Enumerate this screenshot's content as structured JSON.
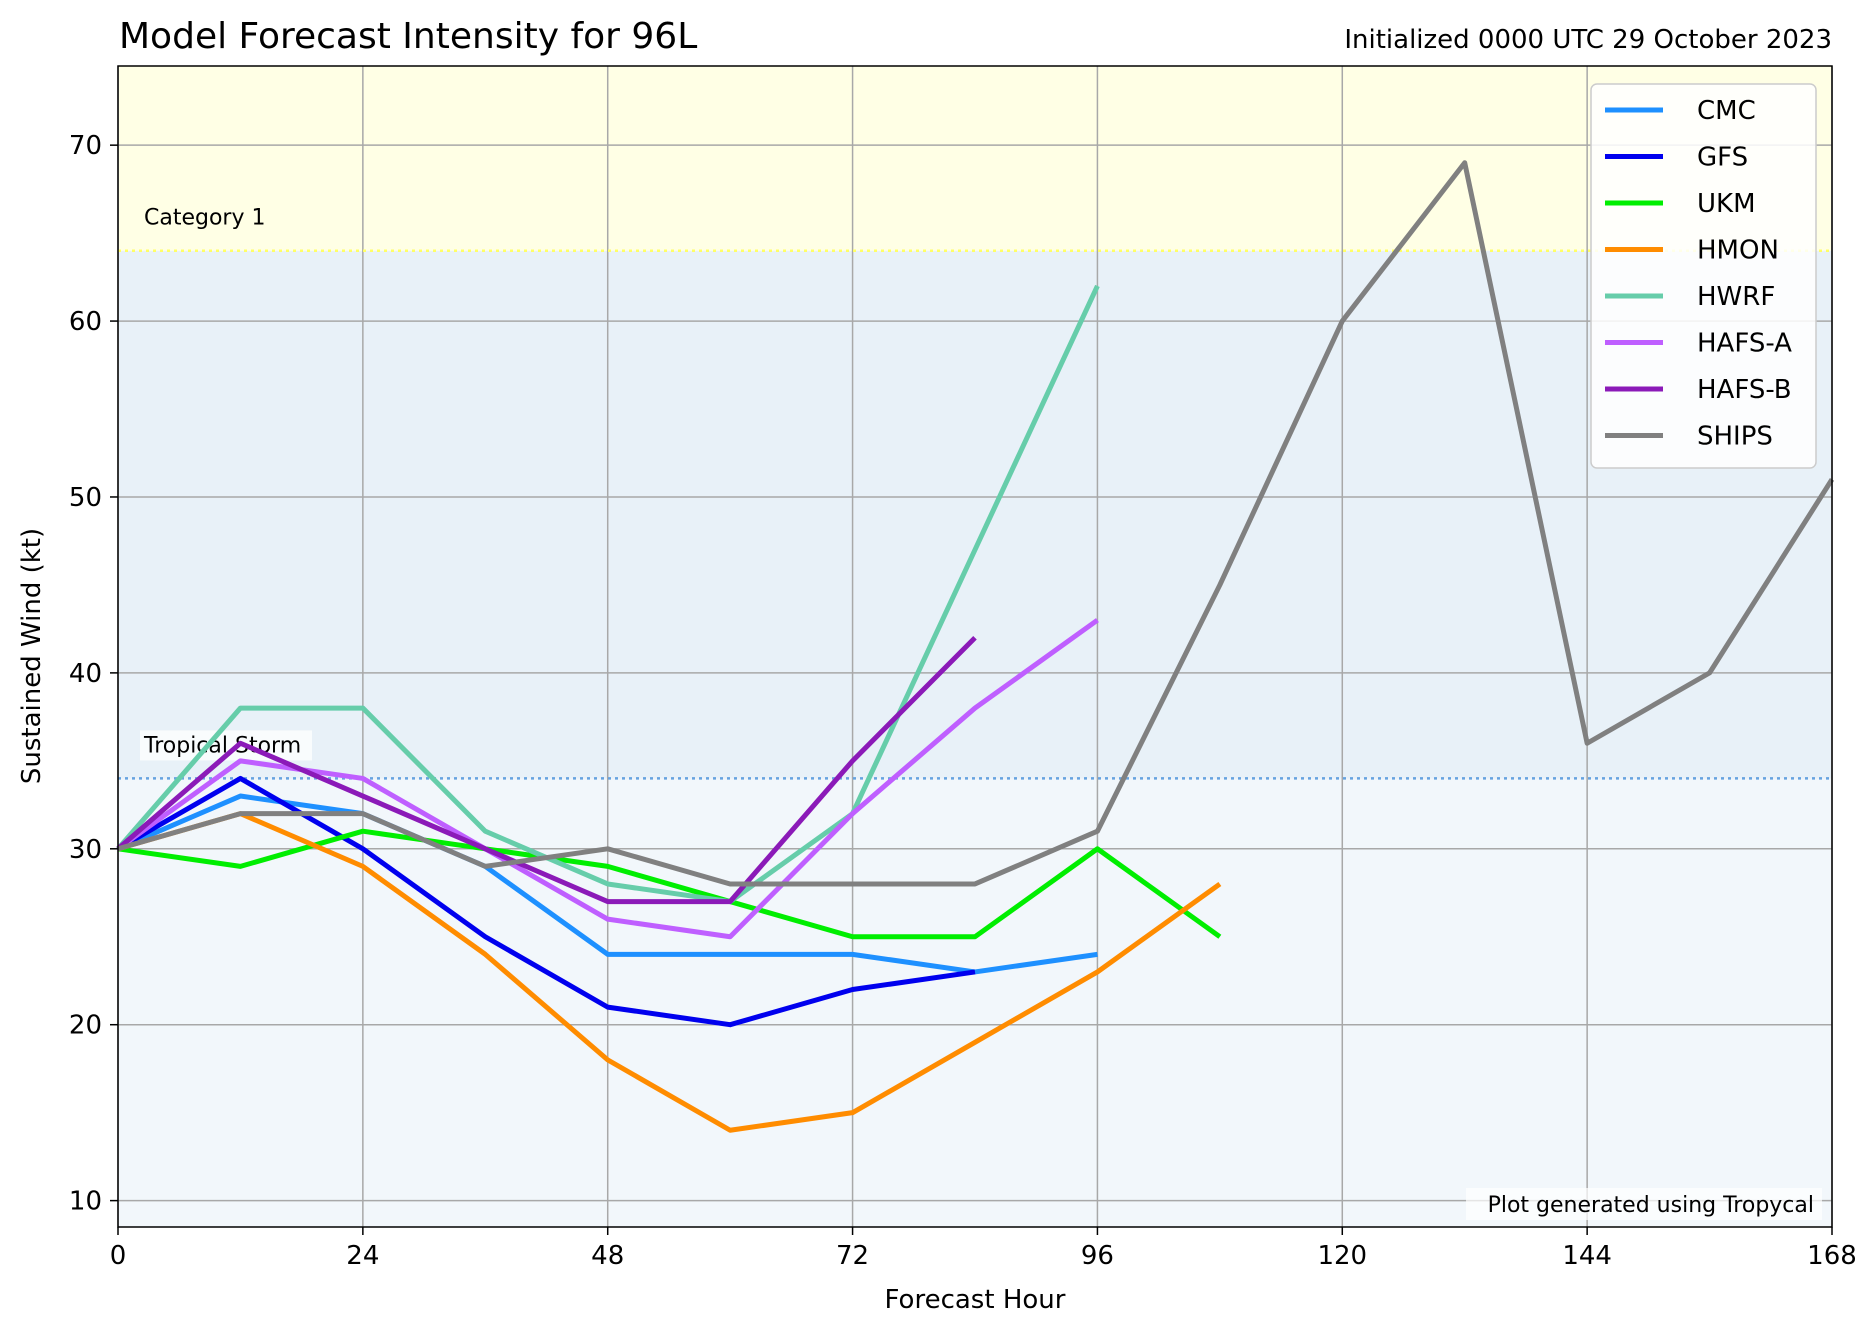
{
  "chart_data": {
    "type": "line",
    "title": "Model Forecast Intensity for 96L",
    "subtitle": "Initialized 0000 UTC 29 October 2023",
    "xlabel": "Forecast Hour",
    "ylabel": "Sustained Wind (kt)",
    "xlim": [
      0,
      168
    ],
    "ylim": [
      8.5,
      74.5
    ],
    "xticks": [
      0,
      24,
      48,
      72,
      96,
      120,
      144,
      168
    ],
    "yticks": [
      10,
      20,
      30,
      40,
      50,
      60,
      70
    ],
    "grid": true,
    "legend_position": "top-right",
    "credit": "Plot generated using Tropycal",
    "thresholds": [
      {
        "label": "Tropical Storm",
        "value": 34,
        "color": "#66a3e0"
      },
      {
        "label": "Category 1",
        "value": 64,
        "color": "#ffff66"
      }
    ],
    "bands": [
      {
        "from": 8.5,
        "to": 34,
        "color": "#f2f7fb"
      },
      {
        "from": 34,
        "to": 64,
        "color": "#e8f1f8"
      },
      {
        "from": 64,
        "to": 74.5,
        "color": "#ffffe5"
      }
    ],
    "threshold_label_colors": {
      "Tropical Storm": "#5b9bd5",
      "Category 1": "#f5a623"
    },
    "series": [
      {
        "name": "CMC",
        "color": "#1e90ff",
        "x": [
          0,
          12,
          24,
          36,
          48,
          60,
          72,
          84,
          96
        ],
        "y": [
          30,
          33,
          32,
          29,
          24,
          24,
          24,
          23,
          24
        ]
      },
      {
        "name": "GFS",
        "color": "#0000ee",
        "x": [
          0,
          12,
          24,
          36,
          48,
          60,
          72,
          84
        ],
        "y": [
          30,
          34,
          30,
          25,
          21,
          20,
          22,
          23
        ]
      },
      {
        "name": "UKM",
        "color": "#00ee00",
        "x": [
          0,
          12,
          24,
          36,
          48,
          60,
          72,
          84,
          96,
          108
        ],
        "y": [
          30,
          29,
          31,
          30,
          29,
          27,
          25,
          25,
          30,
          25
        ]
      },
      {
        "name": "HMON",
        "color": "#ff8c00",
        "x": [
          0,
          12,
          24,
          36,
          48,
          60,
          72,
          84,
          96,
          108
        ],
        "y": [
          30,
          32,
          29,
          24,
          18,
          14,
          15,
          19,
          23,
          28
        ]
      },
      {
        "name": "HWRF",
        "color": "#66cdaa",
        "x": [
          0,
          12,
          24,
          36,
          48,
          60,
          72,
          84,
          96
        ],
        "y": [
          30,
          38,
          38,
          31,
          28,
          27,
          32,
          47,
          62
        ]
      },
      {
        "name": "HAFS-A",
        "color": "#bf5fff",
        "x": [
          0,
          12,
          24,
          36,
          48,
          60,
          72,
          84,
          96
        ],
        "y": [
          30,
          35,
          34,
          30,
          26,
          25,
          32,
          38,
          43
        ]
      },
      {
        "name": "HAFS-B",
        "color": "#8b1ab8",
        "x": [
          0,
          12,
          24,
          36,
          48,
          60,
          72,
          84
        ],
        "y": [
          30,
          36,
          33,
          30,
          27,
          27,
          35,
          42
        ]
      },
      {
        "name": "SHIPS",
        "color": "#808080",
        "x": [
          0,
          12,
          24,
          36,
          48,
          60,
          72,
          84,
          96,
          108,
          120,
          132,
          144,
          156,
          168
        ],
        "y": [
          30,
          32,
          32,
          29,
          30,
          28,
          28,
          28,
          31,
          45,
          60,
          69,
          36,
          40,
          51
        ]
      }
    ]
  }
}
